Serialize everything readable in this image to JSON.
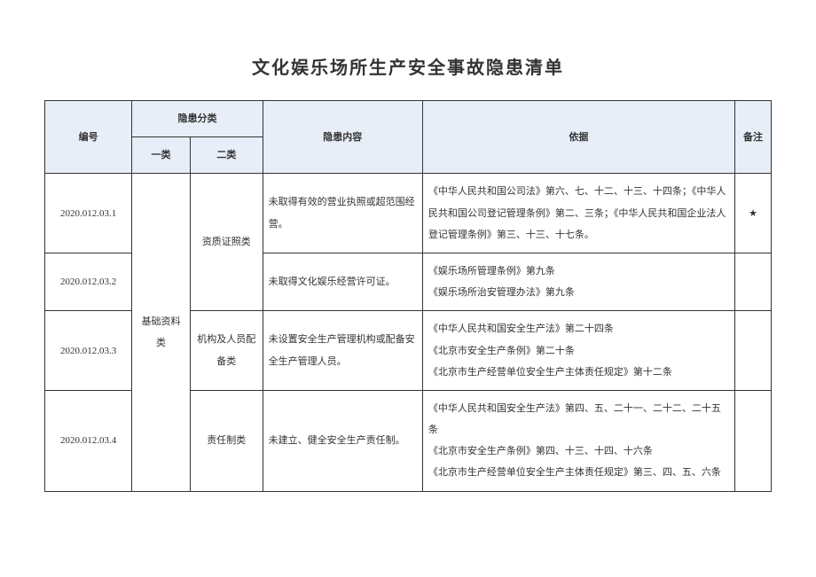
{
  "title": "文化娱乐场所生产安全事故隐患清单",
  "columns": {
    "id": "编号",
    "category_group": "隐患分类",
    "cat1": "一类",
    "cat2": "二类",
    "content": "隐患内容",
    "basis": "依据",
    "note": "备注"
  },
  "cat1_label": "基础资料类",
  "rows": [
    {
      "id": "2020.012.03.1",
      "cat2": "资质证照类",
      "content": "未取得有效的营业执照或超范围经营。",
      "basis": "《中华人民共和国公司法》第六、七、十二、十三、十四条；《中华人民共和国公司登记管理条例》第二、三条；《中华人民共和国企业法人登记管理条例》第三、十三、十七条。",
      "note": "★"
    },
    {
      "id": "2020.012.03.2",
      "content": "未取得文化娱乐经营许可证。",
      "basis": "《娱乐场所管理条例》第九条\n《娱乐场所治安管理办法》第九条",
      "note": ""
    },
    {
      "id": "2020.012.03.3",
      "cat2": "机构及人员配备类",
      "content": "未设置安全生产管理机构或配备安全生产管理人员。",
      "basis": "《中华人民共和国安全生产法》第二十四条\n《北京市安全生产条例》第二十条\n《北京市生产经营单位安全生产主体责任规定》第十二条",
      "note": ""
    },
    {
      "id": "2020.012.03.4",
      "cat2": "责任制类",
      "content": "未建立、健全安全生产责任制。",
      "basis": "《中华人民共和国安全生产法》第四、五、二十一、二十二、二十五条\n《北京市安全生产条例》第四、十三、十四、十六条\n《北京市生产经营单位安全生产主体责任规定》第三、四、五、六条",
      "note": ""
    }
  ],
  "colors": {
    "header_bg": "#e8eef7",
    "border": "#333333",
    "text": "#333333",
    "background": "#ffffff"
  },
  "font": {
    "title_size_pt": 20,
    "body_size_pt": 11,
    "family": "SimSun"
  }
}
